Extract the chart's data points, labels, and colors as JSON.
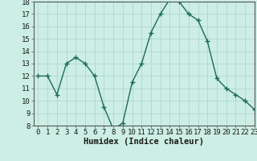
{
  "x": [
    0,
    1,
    2,
    3,
    4,
    5,
    6,
    7,
    8,
    9,
    10,
    11,
    12,
    13,
    14,
    15,
    16,
    17,
    18,
    19,
    20,
    21,
    22,
    23
  ],
  "y": [
    12,
    12,
    10.5,
    13,
    13.5,
    13,
    12,
    9.5,
    7.7,
    8.2,
    11.5,
    13,
    15.5,
    17,
    18.2,
    18,
    17,
    16.5,
    14.8,
    11.8,
    11,
    10.5,
    10,
    9.3
  ],
  "line_color": "#1a6b5a",
  "marker_color": "#1a6b5a",
  "bg_color": "#cceee4",
  "grid_color": "#aad4c8",
  "xlabel": "Humidex (Indice chaleur)",
  "ylim": [
    8,
    18
  ],
  "xlim": [
    -0.5,
    23
  ],
  "yticks": [
    8,
    9,
    10,
    11,
    12,
    13,
    14,
    15,
    16,
    17,
    18
  ],
  "xticks": [
    0,
    1,
    2,
    3,
    4,
    5,
    6,
    7,
    8,
    9,
    10,
    11,
    12,
    13,
    14,
    15,
    16,
    17,
    18,
    19,
    20,
    21,
    22,
    23
  ],
  "xlabel_fontsize": 7.5,
  "tick_fontsize": 6.5,
  "line_width": 1.0,
  "marker_size": 2.5
}
